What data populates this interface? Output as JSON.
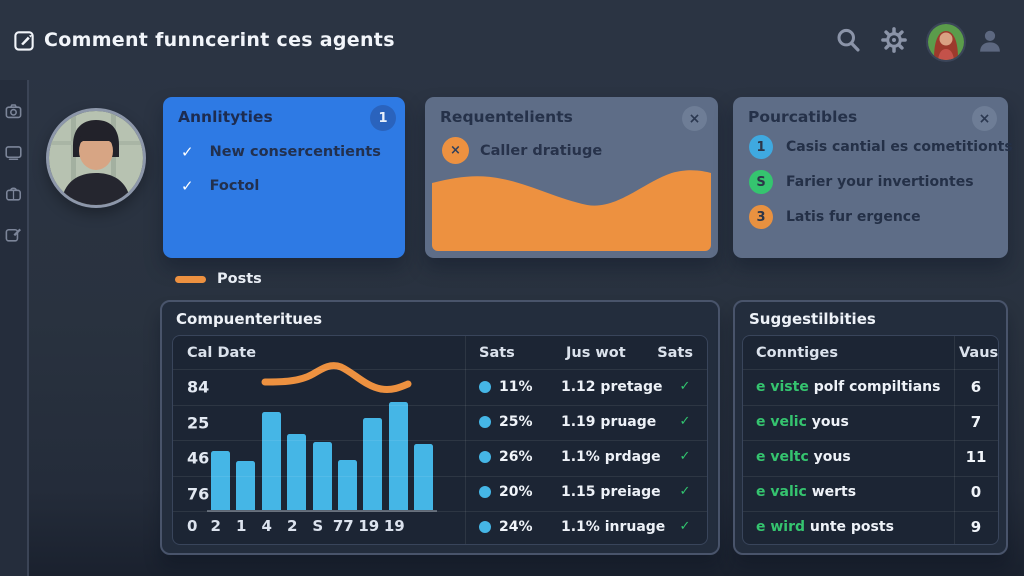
{
  "page": {
    "title": "Comment funncerint ces agents"
  },
  "topbar": {
    "icons": [
      "edit-note",
      "search",
      "settings",
      "user-avatar",
      "person"
    ]
  },
  "sidebar": {
    "icons": [
      "camera",
      "monitor",
      "bag",
      "compose"
    ]
  },
  "cards": {
    "tasks": {
      "title": "Annlityties",
      "badge": "1",
      "items": [
        "New consercentients",
        "Foctol"
      ]
    },
    "requests": {
      "title": "Requentelients",
      "close": "×",
      "legend_mark": "×",
      "legend_label": "Caller dratiuge"
    },
    "percentages": {
      "title": "Pourcatibles",
      "close": "×",
      "items": [
        {
          "num": "1",
          "color": "#3fa9e0",
          "label": "Casis cantial es cometitionts"
        },
        {
          "num": "S",
          "color": "#35c46f",
          "label": "Farier your invertiontes"
        },
        {
          "num": "3",
          "color": "#e89140",
          "label": "Latis fur ergence"
        }
      ]
    }
  },
  "legend": {
    "posts": "Posts"
  },
  "main_panel": {
    "title": "Compuenteritues",
    "table": {
      "date_header": "Cal Date",
      "headers": [
        "Sats",
        "Jus wot",
        "Sats"
      ],
      "check_mark": "✓",
      "rows": [
        {
          "pct": "11%",
          "label": "1.12 pretage"
        },
        {
          "pct": "25%",
          "label": "1.19 pruage"
        },
        {
          "pct": "26%",
          "label": "1.1% prdage"
        },
        {
          "pct": "20%",
          "label": "1.15 preiage"
        },
        {
          "pct": "24%",
          "label": "1.1% inruage"
        }
      ]
    }
  },
  "suggestions": {
    "title": "Suggestilbities",
    "headers": [
      "Conntiges",
      "Vaus"
    ],
    "rows": [
      {
        "tag": "e viste",
        "rest": "polf compiltians",
        "value": "6"
      },
      {
        "tag": "e velic",
        "rest": "yous",
        "value": "7"
      },
      {
        "tag": "e veltc",
        "rest": "yous",
        "value": "11"
      },
      {
        "tag": "e valic",
        "rest": "werts",
        "value": "0"
      },
      {
        "tag": "e wird",
        "rest": "unte posts",
        "value": "9"
      }
    ]
  },
  "chart_data": {
    "type": "bar",
    "title": "Compuenteritues",
    "y_row_labels": [
      "84",
      "25",
      "46",
      "76"
    ],
    "x_labels": [
      "0",
      "2",
      "1",
      "4",
      "2",
      "S",
      "77",
      "19",
      "19"
    ],
    "bars_pct": [
      55,
      45,
      91,
      70,
      63,
      46,
      85,
      100,
      61
    ],
    "bar_color": "#45b6e6",
    "line_color": "#ed9140",
    "overlay_line_series": "Posts",
    "area_card_series": "Caller dratiuge"
  },
  "colors": {
    "accent_blue": "#2e7ae4",
    "accent_orange": "#ed9140",
    "bar_cyan": "#45b6e6",
    "green": "#35c46f"
  }
}
